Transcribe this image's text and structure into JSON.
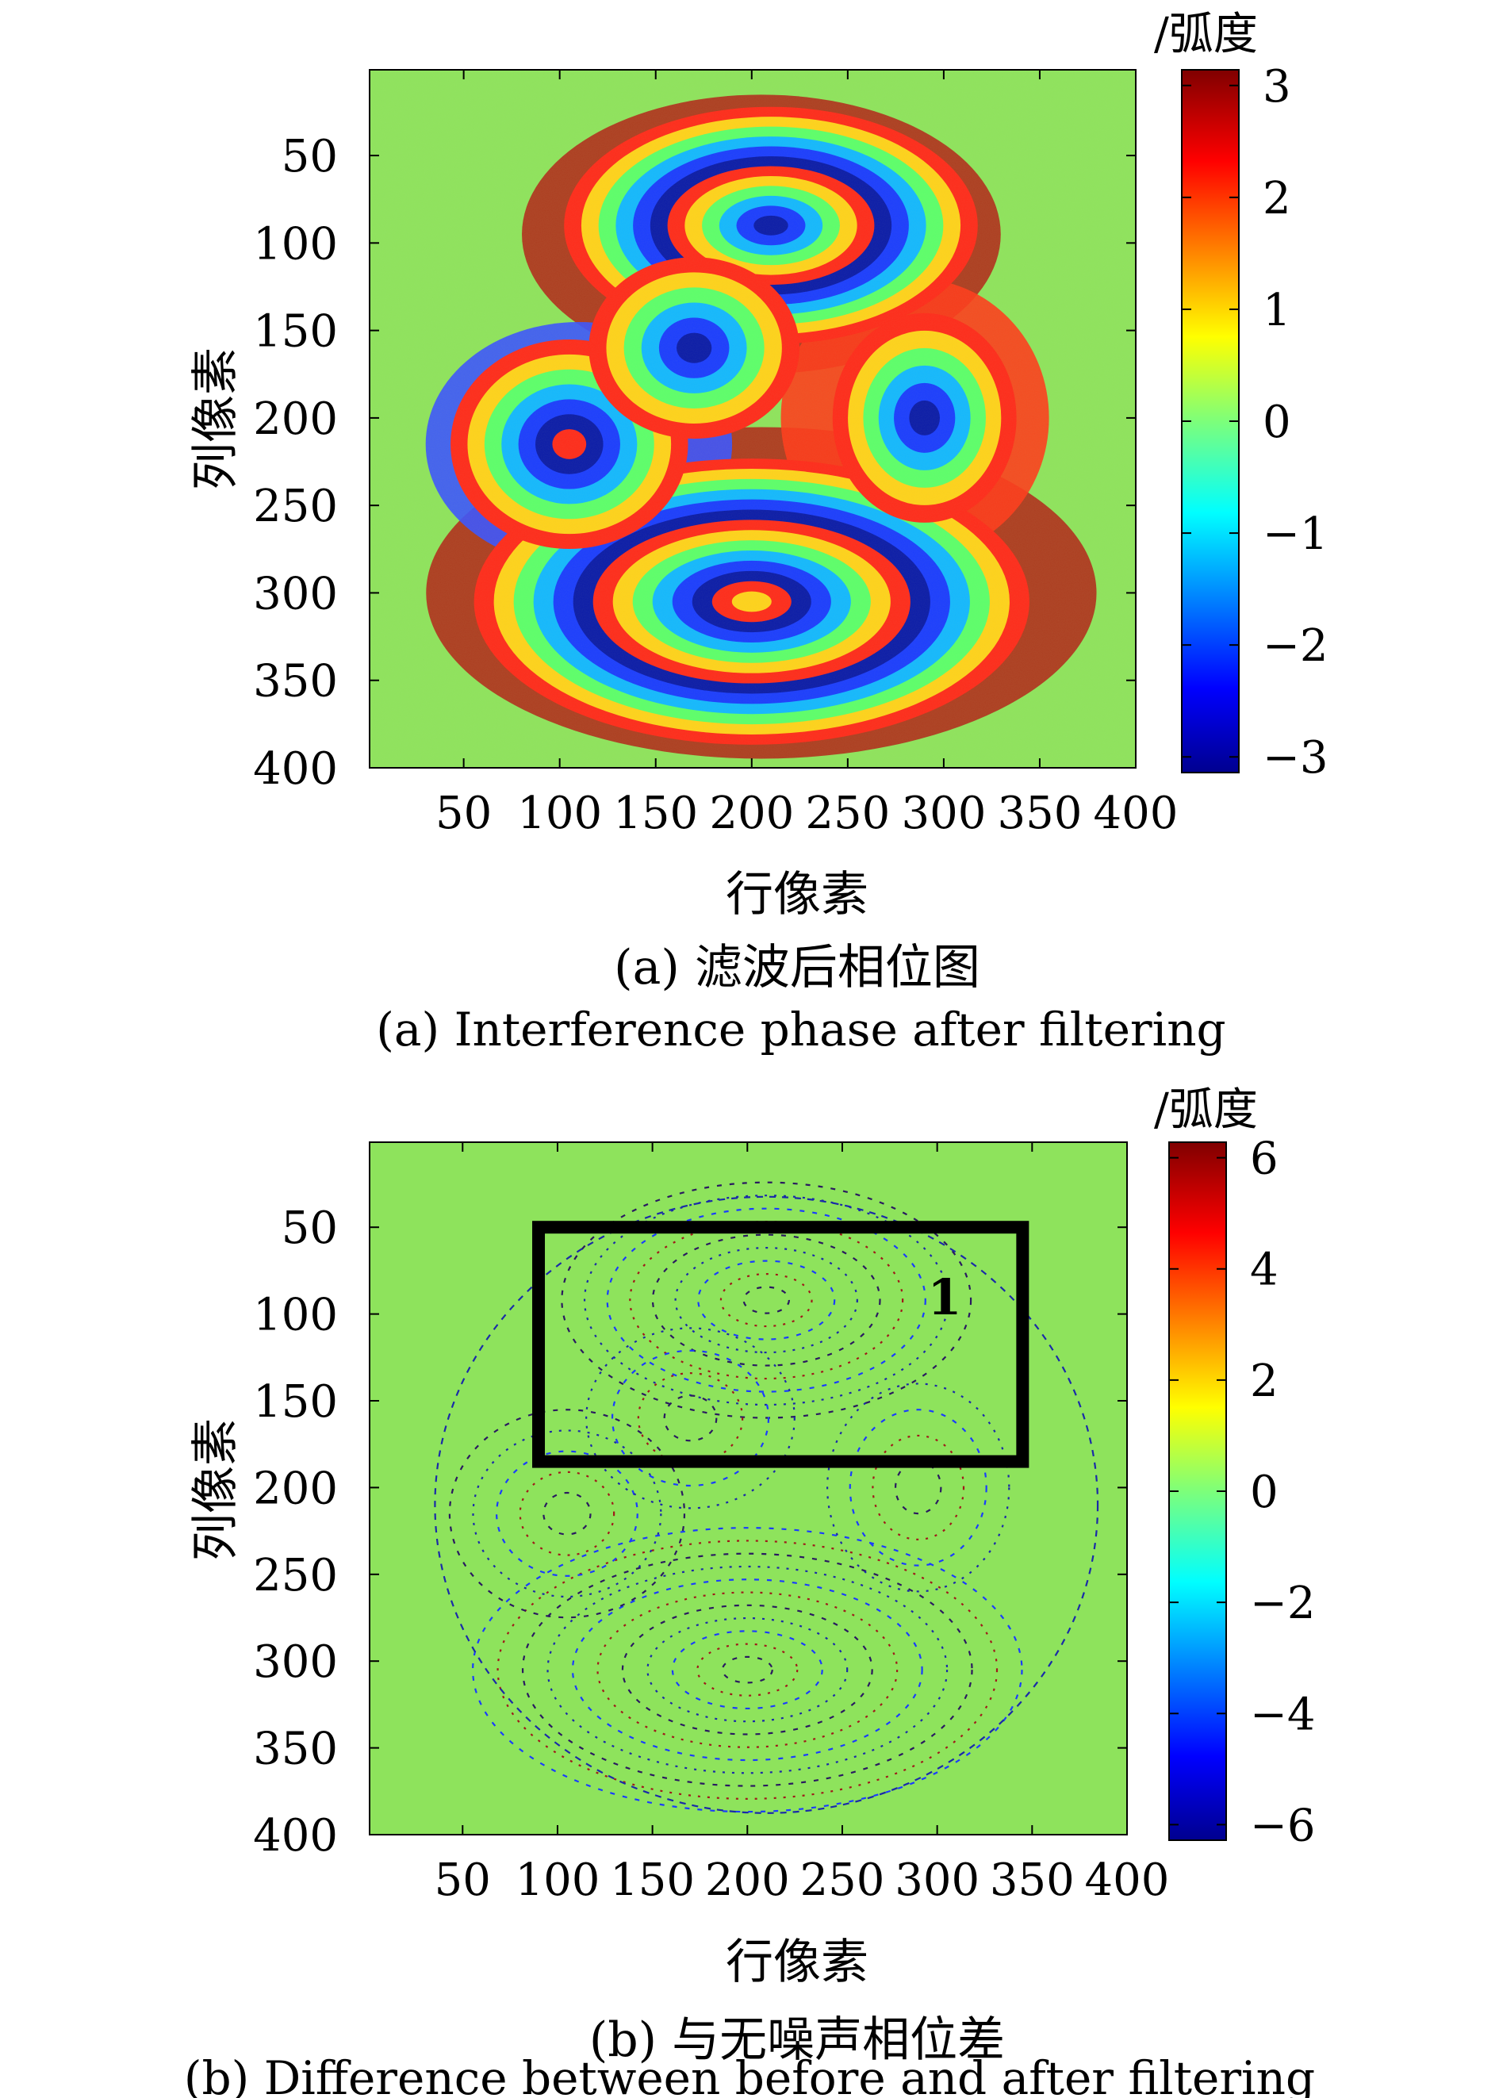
{
  "chart_data": [
    {
      "type": "heatmap",
      "title": "",
      "xlabel": "行像素",
      "ylabel": "列像素",
      "xticks": [
        50,
        100,
        150,
        200,
        250,
        300,
        350,
        400
      ],
      "yticks": [
        50,
        100,
        150,
        200,
        250,
        300,
        350,
        400
      ],
      "xlim": [
        1,
        400
      ],
      "ylim": [
        1,
        400
      ],
      "colorbar": {
        "unit_label": "/弧度",
        "ticks": [
          3,
          2,
          1,
          0,
          -1,
          -2,
          -3
        ],
        "tick_labels": [
          "3",
          "2",
          "1",
          "0",
          "−1",
          "−2",
          "−3"
        ],
        "range": [
          -3.14,
          3.14
        ],
        "colormap": "jet"
      },
      "caption_cn": "(a) 滤波后相位图",
      "caption_en": "(a) Interference phase after filtering",
      "pattern": "wrapped interferometric phase fringes (concentric ring systems)",
      "fringe_centers": [
        {
          "x": 210,
          "y": 90
        },
        {
          "x": 170,
          "y": 160
        },
        {
          "x": 105,
          "y": 215
        },
        {
          "x": 290,
          "y": 200
        },
        {
          "x": 200,
          "y": 305
        }
      ]
    },
    {
      "type": "heatmap",
      "title": "",
      "xlabel": "行像素",
      "ylabel": "列像素",
      "xticks": [
        50,
        100,
        150,
        200,
        250,
        300,
        350,
        400
      ],
      "yticks": [
        50,
        100,
        150,
        200,
        250,
        300,
        350,
        400
      ],
      "xlim": [
        1,
        400
      ],
      "ylim": [
        1,
        400
      ],
      "colorbar": {
        "unit_label": "/弧度",
        "ticks": [
          6,
          4,
          2,
          0,
          -2,
          -4,
          -6
        ],
        "tick_labels": [
          "6",
          "4",
          "2",
          "0",
          "−2",
          "−4",
          "−6"
        ],
        "range": [
          -6.28,
          6.28
        ],
        "colormap": "jet"
      },
      "caption_cn": "(b) 与无噪声相位差",
      "caption_en": "(b) Difference between before and after filtering",
      "background_value": 0,
      "pattern": "sparse dotted ±2π residues along fringe boundaries",
      "annotations": [
        {
          "type": "rectangle",
          "x_range": [
            90,
            345
          ],
          "y_range": [
            50,
            185
          ],
          "label": "1"
        }
      ]
    }
  ]
}
